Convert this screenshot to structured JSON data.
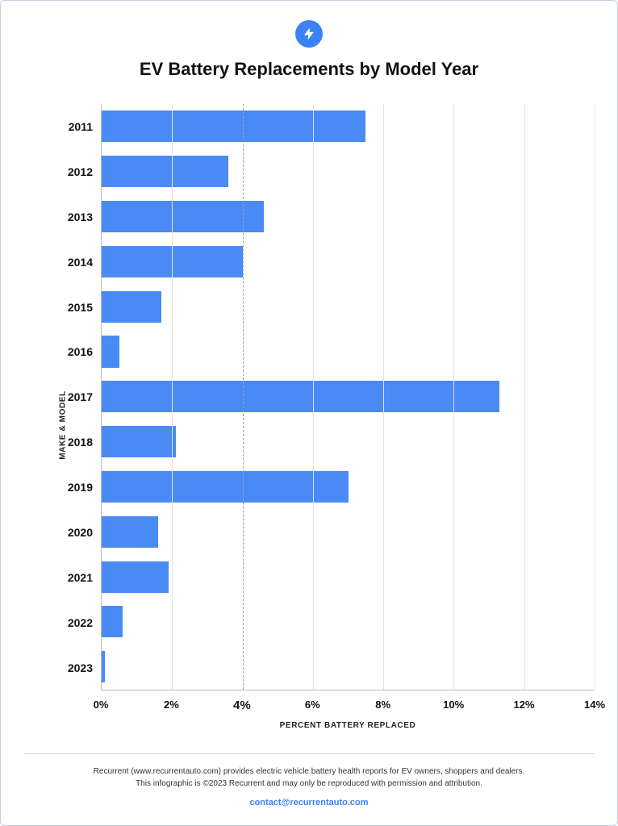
{
  "title": "EV Battery Replacements by Model Year",
  "logo": {
    "name": "bolt-icon",
    "bg_color": "#3b82f6",
    "fg_color": "#ffffff"
  },
  "chart": {
    "type": "bar-horizontal",
    "bar_color": "#4a8af4",
    "grid_color": "#e4e4e4",
    "emph_grid_color": "#9aa0a6",
    "axis_color": "#bbbbbb",
    "background_color": "#ffffff",
    "border_color": "#c8cbe0",
    "y_title": "MAKE & MODEL",
    "x_title": "PERCENT BATTERY REPLACED",
    "title_fontsize": 22,
    "ylabel_fontsize": 14,
    "xlabel_fontsize": 13,
    "axis_title_fontsize": 10,
    "xlim": [
      0,
      14
    ],
    "xtick_step": 2,
    "xticks": [
      {
        "value": 0,
        "label": "0%",
        "emph": false
      },
      {
        "value": 2,
        "label": "2%",
        "emph": false
      },
      {
        "value": 4,
        "label": "4%",
        "emph": true
      },
      {
        "value": 6,
        "label": "6%",
        "emph": false
      },
      {
        "value": 8,
        "label": "8%",
        "emph": false
      },
      {
        "value": 10,
        "label": "10%",
        "emph": false
      },
      {
        "value": 12,
        "label": "12%",
        "emph": false
      },
      {
        "value": 14,
        "label": "14%",
        "emph": false
      }
    ],
    "categories": [
      "2011",
      "2012",
      "2013",
      "2014",
      "2015",
      "2016",
      "2017",
      "2018",
      "2019",
      "2020",
      "2021",
      "2022",
      "2023"
    ],
    "values": [
      7.5,
      3.6,
      4.6,
      4.0,
      1.7,
      0.5,
      11.3,
      2.1,
      7.0,
      1.6,
      1.9,
      0.6,
      0.1
    ],
    "bar_fill_ratio": 0.7
  },
  "footer": {
    "line1": "Recurrent (www.recurrentauto.com) provides electric vehicle battery health reports for EV owners, shoppers and dealers.",
    "line2": "This infographic is ©2023 Recurrent and may only be reproduced with permission and attribution.",
    "contact": "contact@recurrentauto.com",
    "contact_color": "#3b82f6"
  }
}
